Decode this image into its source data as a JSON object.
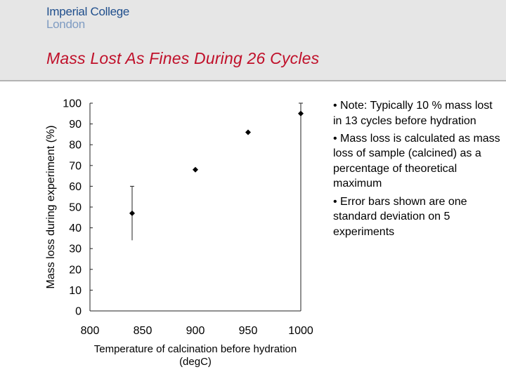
{
  "header": {
    "logo_line1": "Imperial College",
    "logo_line2": "London",
    "title": "Mass Lost As Fines During 26 Cycles"
  },
  "notes": [
    "• Note: Typically 10 % mass lost in 13 cycles before hydration",
    "• Mass loss is calculated as mass loss of sample (calcined) as a percentage of theoretical maximum",
    "• Error bars shown are one standard deviation on 5 experiments"
  ],
  "colors": {
    "title": "#c0102a",
    "logo_primary": "#1f4e8c",
    "logo_secondary": "#7f9cc2",
    "header_bg": "#e6e6e6",
    "marker": "#000000"
  },
  "chart_data": {
    "type": "scatter",
    "xlabel": "Temperature of calcination before hydration (degC)",
    "ylabel": "Mass loss during experiment (%)",
    "xlim": [
      800,
      1000
    ],
    "ylim": [
      0,
      100
    ],
    "x_ticks": [
      "800",
      "850",
      "900",
      "950",
      "1000"
    ],
    "y_ticks": [
      "0",
      "10",
      "20",
      "30",
      "40",
      "50",
      "60",
      "70",
      "80",
      "90",
      "100"
    ],
    "grid": false,
    "points": [
      {
        "x": 840,
        "y": 47,
        "err_low": 34,
        "err_high": 60
      },
      {
        "x": 900,
        "y": 68
      },
      {
        "x": 950,
        "y": 86
      },
      {
        "x": 1000,
        "y": 95,
        "err_low": 0,
        "err_high": 100
      }
    ]
  }
}
